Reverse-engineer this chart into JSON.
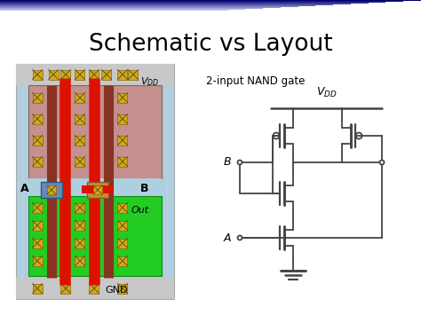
{
  "title": "Schematic vs Layout",
  "subtitle": "2-input NAND gate",
  "bg_top_color": "#1a1a6e",
  "bg_main_color": "#ffffff",
  "line_color": "#333333",
  "layout_bg": "#b8d4e4",
  "pmos_region_color": "#c49090",
  "nmos_region_color": "#22cc22",
  "poly_color": "#dd1100",
  "metal1_color": "#884433",
  "metal2_color": "#dd1100",
  "contact_color": "#ccaa22",
  "contact_line_color": "#664400",
  "blue_box_color": "#6688bb",
  "orange_box_color": "#cc8833",
  "vdd_label": "$V_{DD}$",
  "gnd_label": "GND",
  "out_label": "Out",
  "a_label": "A",
  "b_label": "B",
  "schematic_line_color": "#444444",
  "schematic_lw": 1.3
}
